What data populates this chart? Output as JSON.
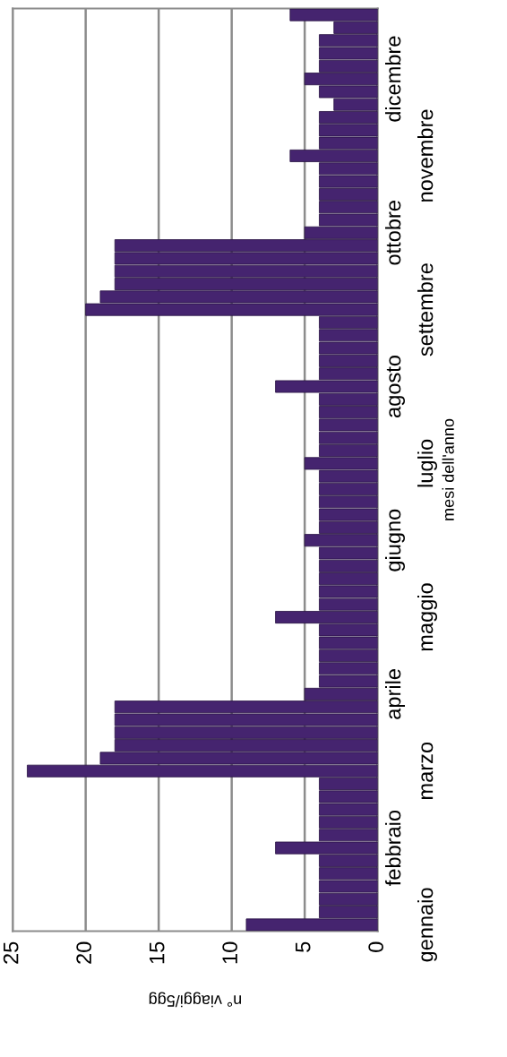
{
  "chart_data": {
    "type": "bar",
    "orientation": "horizontal",
    "xlabel": "n° viaggi/5gg",
    "ylabel": "mesi dell'anno",
    "categories": [
      null,
      null,
      null,
      null,
      null,
      "dicembre",
      null,
      null,
      null,
      null,
      null,
      "novembre",
      null,
      null,
      null,
      null,
      null,
      "ottobre",
      null,
      null,
      null,
      null,
      null,
      "settembre",
      null,
      null,
      null,
      null,
      null,
      "agosto",
      null,
      null,
      null,
      null,
      null,
      "luglio",
      null,
      null,
      null,
      null,
      null,
      "giugno",
      null,
      null,
      null,
      null,
      null,
      "maggio",
      null,
      null,
      null,
      null,
      null,
      "aprile",
      null,
      null,
      null,
      null,
      null,
      "marzo",
      null,
      null,
      null,
      null,
      null,
      "febbraio",
      null,
      null,
      null,
      null,
      null,
      "gennaio"
    ],
    "values": [
      6,
      3,
      4,
      4,
      4,
      5,
      4,
      3,
      4,
      4,
      4,
      6,
      4,
      4,
      4,
      4,
      4,
      5,
      18,
      18,
      18,
      18,
      19,
      20,
      4,
      4,
      4,
      4,
      4,
      7,
      4,
      4,
      4,
      4,
      4,
      5,
      4,
      4,
      4,
      4,
      4,
      5,
      4,
      4,
      4,
      4,
      4,
      7,
      4,
      4,
      4,
      4,
      4,
      5,
      18,
      18,
      18,
      18,
      19,
      24,
      4,
      4,
      4,
      4,
      4,
      7,
      4,
      4,
      4,
      4,
      4,
      9
    ],
    "color": "#45246f",
    "xlim": [
      25,
      0
    ],
    "xticks": [
      0,
      5,
      10,
      15,
      20,
      25
    ],
    "grid": "x"
  }
}
